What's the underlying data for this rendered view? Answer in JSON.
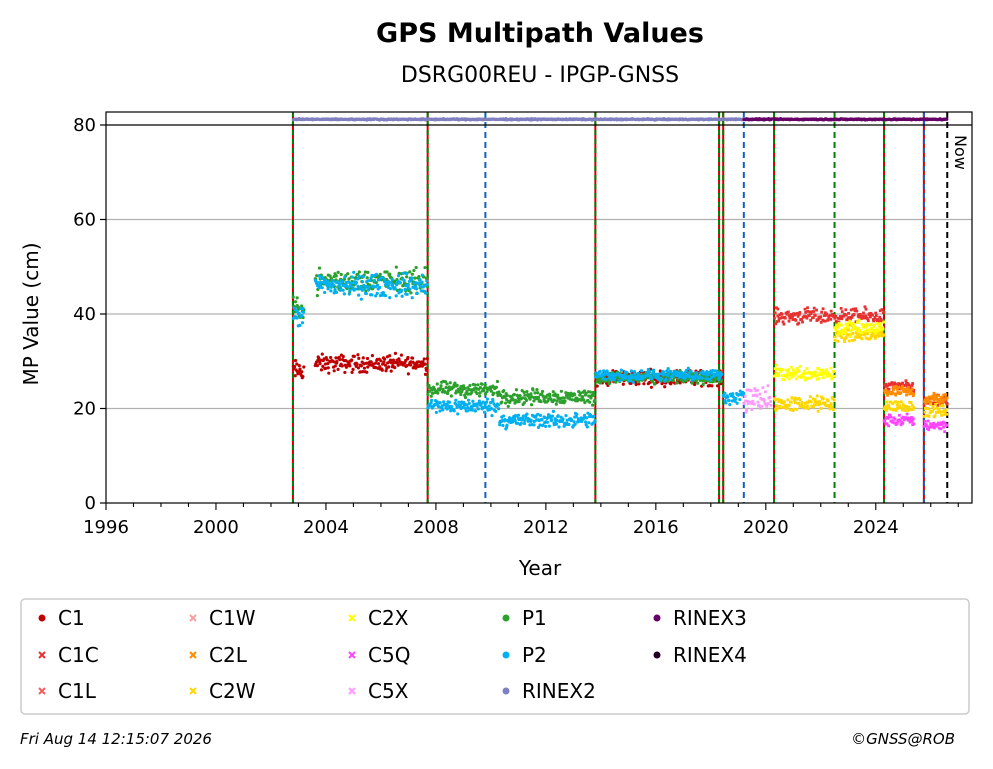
{
  "chart_data": {
    "type": "scatter",
    "title": "GPS Multipath Values",
    "subtitle": "DSRG00REU - IPGP-GNSS",
    "xlabel": "Year",
    "ylabel": "MP Value (cm)",
    "xlim": [
      1996,
      2027.5
    ],
    "ylim": [
      0,
      80
    ],
    "x_ticks": [
      1996,
      2000,
      2004,
      2008,
      2012,
      2016,
      2020,
      2024
    ],
    "y_ticks": [
      0,
      20,
      40,
      60,
      80
    ],
    "grid": "horizontal",
    "legend_placement": "below",
    "now_label": "Now",
    "now_year": 2026.6,
    "colors": {
      "C1": "#c00000",
      "C1C": "#e83030",
      "C1L": "#f06060",
      "C1W": "#f7a0a0",
      "C2L": "#ff8c00",
      "C2W": "#ffd700",
      "C2X": "#ffff00",
      "C5Q": "#ff44ff",
      "C5X": "#ff99ff",
      "P1": "#2ca02c",
      "P2": "#00b0f0",
      "RINEX2": "#8080c0",
      "RINEX3": "#660066",
      "RINEX4": "#200020"
    },
    "event_lines": [
      {
        "x": 2002.8,
        "style": "red-green"
      },
      {
        "x": 2007.7,
        "style": "red-green"
      },
      {
        "x": 2009.8,
        "style": "blue-dashed"
      },
      {
        "x": 2013.8,
        "style": "red-green"
      },
      {
        "x": 2018.3,
        "style": "red-green"
      },
      {
        "x": 2018.45,
        "style": "red-green"
      },
      {
        "x": 2019.2,
        "style": "blue-dashed"
      },
      {
        "x": 2020.3,
        "style": "red-green"
      },
      {
        "x": 2022.5,
        "style": "green-dashed"
      },
      {
        "x": 2024.3,
        "style": "red-green"
      },
      {
        "x": 2025.75,
        "style": "red-blue"
      },
      {
        "x": 2026.6,
        "style": "black-dashed"
      }
    ],
    "series": [
      {
        "name": "C1",
        "marker": "dot",
        "segments": [
          {
            "x": [
              2002.8,
              2003.2
            ],
            "y": 28,
            "spread": 1.8
          },
          {
            "x": [
              2003.6,
              2007.7
            ],
            "y": 29.5,
            "spread": 1.5
          },
          {
            "x": [
              2013.8,
              2018.4
            ],
            "y": 26.5,
            "spread": 1.3
          }
        ]
      },
      {
        "name": "C1C",
        "marker": "x",
        "segments": [
          {
            "x": [
              2020.3,
              2024.3
            ],
            "y": 39.5,
            "spread": 1.3
          },
          {
            "x": [
              2024.3,
              2025.4
            ],
            "y": 24.5,
            "spread": 1.0
          },
          {
            "x": [
              2025.75,
              2026.6
            ],
            "y": 21.5,
            "spread": 1.0
          }
        ]
      },
      {
        "name": "C1L",
        "marker": "x",
        "segments": []
      },
      {
        "name": "C1W",
        "marker": "x",
        "segments": []
      },
      {
        "name": "C2L",
        "marker": "x",
        "segments": [
          {
            "x": [
              2024.3,
              2025.4
            ],
            "y": 23.5,
            "spread": 1.0
          },
          {
            "x": [
              2025.75,
              2026.6
            ],
            "y": 22,
            "spread": 1.0
          }
        ]
      },
      {
        "name": "C2W",
        "marker": "x",
        "segments": [
          {
            "x": [
              2020.3,
              2022.5
            ],
            "y": 21,
            "spread": 1.3
          },
          {
            "x": [
              2022.5,
              2024.3
            ],
            "y": 35.5,
            "spread": 1.3
          },
          {
            "x": [
              2024.3,
              2025.4
            ],
            "y": 20.5,
            "spread": 1.0
          },
          {
            "x": [
              2025.75,
              2026.6
            ],
            "y": 19.5,
            "spread": 1.0
          }
        ]
      },
      {
        "name": "C2X",
        "marker": "x",
        "segments": [
          {
            "x": [
              2020.3,
              2022.5
            ],
            "y": 27.5,
            "spread": 1.3
          },
          {
            "x": [
              2022.5,
              2024.3
            ],
            "y": 37,
            "spread": 1.3
          }
        ]
      },
      {
        "name": "C5Q",
        "marker": "x",
        "segments": [
          {
            "x": [
              2024.3,
              2025.4
            ],
            "y": 17.5,
            "spread": 1.0
          },
          {
            "x": [
              2025.75,
              2026.6
            ],
            "y": 16.5,
            "spread": 1.0
          }
        ]
      },
      {
        "name": "C5X",
        "marker": "x",
        "segments": [
          {
            "x": [
              2019.2,
              2020.2
            ],
            "y": 22,
            "spread": 2.5
          }
        ]
      },
      {
        "name": "P1",
        "marker": "dot",
        "segments": [
          {
            "x": [
              2002.8,
              2003.2
            ],
            "y": 41,
            "spread": 1.8
          },
          {
            "x": [
              2003.6,
              2007.7
            ],
            "y": 47,
            "spread": 2.0
          },
          {
            "x": [
              2007.7,
              2010.3
            ],
            "y": 24,
            "spread": 1.3
          },
          {
            "x": [
              2010.3,
              2013.8
            ],
            "y": 22.5,
            "spread": 1.3
          },
          {
            "x": [
              2013.8,
              2018.4
            ],
            "y": 26.5,
            "spread": 1.0
          }
        ]
      },
      {
        "name": "P2",
        "marker": "dot",
        "segments": [
          {
            "x": [
              2002.8,
              2003.2
            ],
            "y": 39.5,
            "spread": 1.8
          },
          {
            "x": [
              2003.6,
              2007.7
            ],
            "y": 46,
            "spread": 2.0
          },
          {
            "x": [
              2007.7,
              2010.3
            ],
            "y": 20.5,
            "spread": 1.3
          },
          {
            "x": [
              2010.3,
              2013.8
            ],
            "y": 17.5,
            "spread": 1.3
          },
          {
            "x": [
              2013.8,
              2018.4
            ],
            "y": 27,
            "spread": 1.0
          },
          {
            "x": [
              2018.45,
              2019.2
            ],
            "y": 22.5,
            "spread": 1.3
          }
        ]
      },
      {
        "name": "RINEX2",
        "marker": "dot",
        "segments": [
          {
            "x": [
              2002.8,
              2020.0
            ],
            "y": 81.2,
            "spread": 0.1
          }
        ]
      },
      {
        "name": "RINEX3",
        "marker": "dot",
        "segments": [
          {
            "x": [
              2019.2,
              2026.6
            ],
            "y": 81.2,
            "spread": 0.1
          }
        ]
      },
      {
        "name": "RINEX4",
        "marker": "dot",
        "segments": []
      }
    ]
  },
  "footer": {
    "timestamp": "Fri Aug 14 12:15:07 2026",
    "copyright": "©GNSS@ROB"
  }
}
